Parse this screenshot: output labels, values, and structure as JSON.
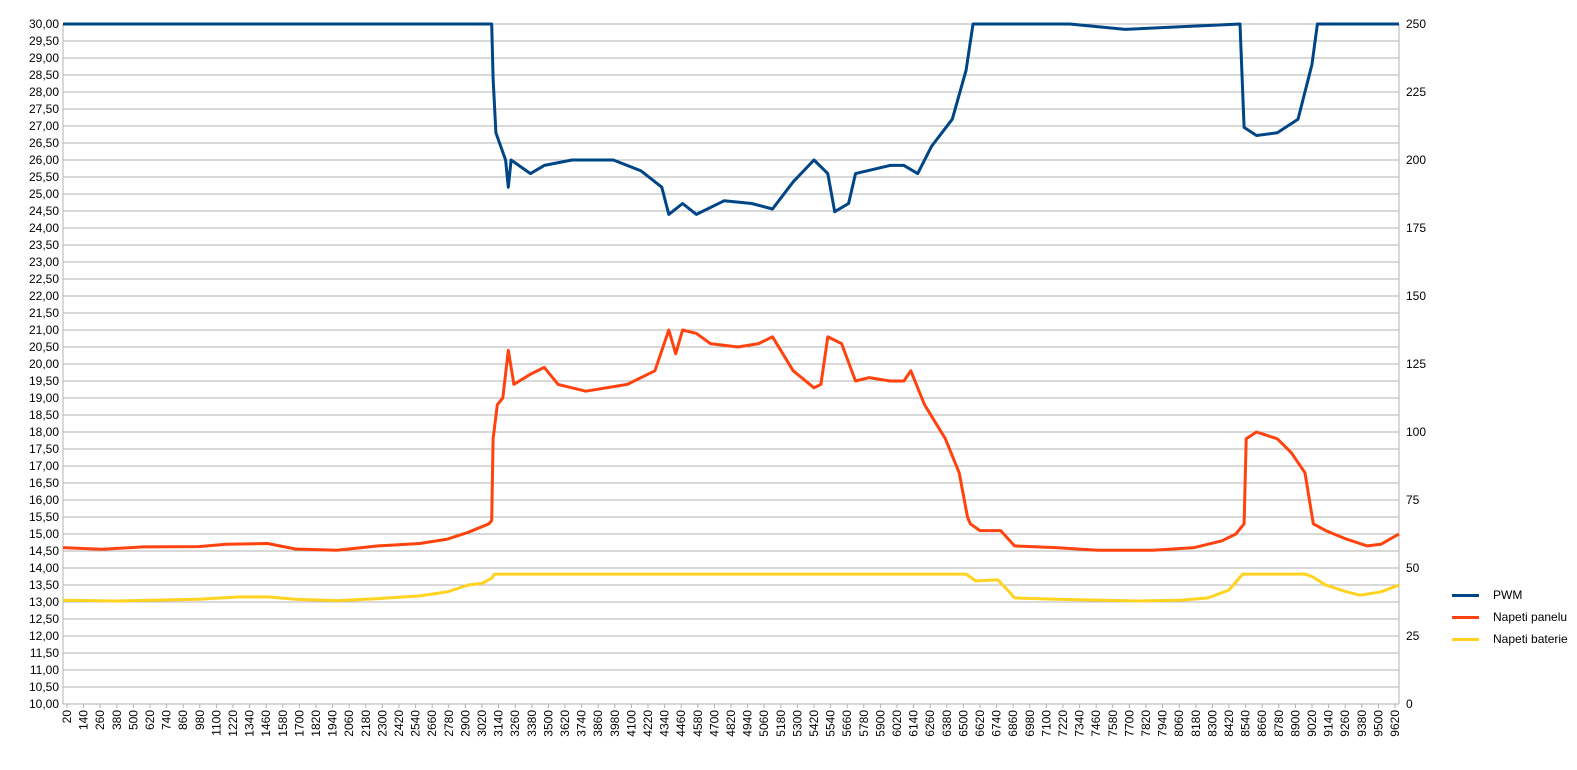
{
  "chart_data": {
    "type": "line",
    "title": "",
    "xlabel": "",
    "ylabel": "",
    "y_left": {
      "min": 10,
      "max": 30,
      "step": 0.5
    },
    "y_right": {
      "min": 0,
      "max": 250,
      "step": 25
    },
    "x_range": [
      20,
      9680
    ],
    "x_tick_labels": [
      "20",
      "140",
      "260",
      "380",
      "500",
      "620",
      "740",
      "860",
      "980",
      "1100",
      "1220",
      "1340",
      "1460",
      "1580",
      "1700",
      "1820",
      "1940",
      "2060",
      "2180",
      "2300",
      "2420",
      "2540",
      "2660",
      "2780",
      "2900",
      "3020",
      "3140",
      "3260",
      "3380",
      "3500",
      "3620",
      "3740",
      "3860",
      "3980",
      "4100",
      "4220",
      "4340",
      "4460",
      "4580",
      "4700",
      "4820",
      "4940",
      "5060",
      "5180",
      "5300",
      "5420",
      "5540",
      "5660",
      "5780",
      "5900",
      "6020",
      "6140",
      "6260",
      "6380",
      "6500",
      "6620",
      "6740",
      "6860",
      "6980",
      "7100",
      "7220",
      "7340",
      "7460",
      "7580",
      "7700",
      "7820",
      "7940",
      "8060",
      "8180",
      "8300",
      "8420",
      "8540",
      "8660",
      "8780",
      "8900",
      "9020",
      "9140",
      "9260",
      "9380",
      "9500",
      "9620"
    ],
    "grid": true,
    "legend_position": "right-bottom",
    "series": [
      {
        "name": "PWM",
        "axis": "right",
        "color": "#004586",
        "points": [
          [
            20,
            250
          ],
          [
            3120,
            250
          ],
          [
            3130,
            230
          ],
          [
            3150,
            210
          ],
          [
            3220,
            200
          ],
          [
            3240,
            190
          ],
          [
            3260,
            200
          ],
          [
            3400,
            195
          ],
          [
            3500,
            198
          ],
          [
            3700,
            200
          ],
          [
            4000,
            200
          ],
          [
            4200,
            196
          ],
          [
            4350,
            190
          ],
          [
            4400,
            180
          ],
          [
            4500,
            184
          ],
          [
            4600,
            180
          ],
          [
            4800,
            185
          ],
          [
            5000,
            184
          ],
          [
            5150,
            182
          ],
          [
            5300,
            192
          ],
          [
            5450,
            200
          ],
          [
            5550,
            195
          ],
          [
            5600,
            181
          ],
          [
            5700,
            184
          ],
          [
            5750,
            195
          ],
          [
            6000,
            198
          ],
          [
            6100,
            198
          ],
          [
            6200,
            195
          ],
          [
            6300,
            205
          ],
          [
            6450,
            215
          ],
          [
            6550,
            233
          ],
          [
            6600,
            250
          ],
          [
            7300,
            250
          ],
          [
            7700,
            248
          ],
          [
            8100,
            249
          ],
          [
            8530,
            250
          ],
          [
            8560,
            212
          ],
          [
            8650,
            209
          ],
          [
            8800,
            210
          ],
          [
            8950,
            215
          ],
          [
            9050,
            235
          ],
          [
            9090,
            250
          ],
          [
            9680,
            250
          ]
        ]
      },
      {
        "name": "Napeti panelu",
        "axis": "left",
        "values_note": "",
        "color": "#ff420e",
        "points": [
          [
            20,
            14.6
          ],
          [
            300,
            14.55
          ],
          [
            600,
            14.62
          ],
          [
            1000,
            14.63
          ],
          [
            1200,
            14.7
          ],
          [
            1500,
            14.72
          ],
          [
            1700,
            14.56
          ],
          [
            2000,
            14.52
          ],
          [
            2300,
            14.65
          ],
          [
            2600,
            14.72
          ],
          [
            2800,
            14.85
          ],
          [
            2950,
            15.05
          ],
          [
            3100,
            15.3
          ],
          [
            3120,
            15.4
          ],
          [
            3130,
            17.8
          ],
          [
            3160,
            18.8
          ],
          [
            3200,
            19.0
          ],
          [
            3240,
            20.4
          ],
          [
            3280,
            19.4
          ],
          [
            3400,
            19.7
          ],
          [
            3500,
            19.9
          ],
          [
            3600,
            19.4
          ],
          [
            3800,
            19.2
          ],
          [
            4100,
            19.4
          ],
          [
            4300,
            19.8
          ],
          [
            4400,
            21.0
          ],
          [
            4450,
            20.3
          ],
          [
            4500,
            21.0
          ],
          [
            4600,
            20.9
          ],
          [
            4700,
            20.6
          ],
          [
            4900,
            20.5
          ],
          [
            5050,
            20.6
          ],
          [
            5150,
            20.8
          ],
          [
            5300,
            19.8
          ],
          [
            5450,
            19.3
          ],
          [
            5500,
            19.4
          ],
          [
            5550,
            20.8
          ],
          [
            5650,
            20.6
          ],
          [
            5750,
            19.5
          ],
          [
            5850,
            19.6
          ],
          [
            6000,
            19.5
          ],
          [
            6100,
            19.5
          ],
          [
            6150,
            19.8
          ],
          [
            6250,
            18.8
          ],
          [
            6400,
            17.8
          ],
          [
            6500,
            16.8
          ],
          [
            6560,
            15.5
          ],
          [
            6580,
            15.3
          ],
          [
            6650,
            15.1
          ],
          [
            6800,
            15.1
          ],
          [
            6900,
            14.65
          ],
          [
            7200,
            14.6
          ],
          [
            7500,
            14.52
          ],
          [
            7900,
            14.52
          ],
          [
            8200,
            14.6
          ],
          [
            8400,
            14.8
          ],
          [
            8500,
            15.0
          ],
          [
            8560,
            15.3
          ],
          [
            8575,
            17.8
          ],
          [
            8650,
            18.0
          ],
          [
            8800,
            17.8
          ],
          [
            8900,
            17.4
          ],
          [
            9000,
            16.8
          ],
          [
            9060,
            15.3
          ],
          [
            9150,
            15.1
          ],
          [
            9300,
            14.85
          ],
          [
            9450,
            14.65
          ],
          [
            9550,
            14.7
          ],
          [
            9680,
            15.0
          ]
        ]
      },
      {
        "name": "Napeti baterie",
        "axis": "left",
        "color": "#ffd320",
        "points": [
          [
            20,
            13.05
          ],
          [
            400,
            13.03
          ],
          [
            1000,
            13.08
          ],
          [
            1300,
            13.15
          ],
          [
            1500,
            13.15
          ],
          [
            1700,
            13.08
          ],
          [
            2000,
            13.04
          ],
          [
            2300,
            13.1
          ],
          [
            2600,
            13.18
          ],
          [
            2800,
            13.3
          ],
          [
            2950,
            13.5
          ],
          [
            3050,
            13.55
          ],
          [
            3120,
            13.7
          ],
          [
            3140,
            13.82
          ],
          [
            6550,
            13.82
          ],
          [
            6620,
            13.62
          ],
          [
            6780,
            13.65
          ],
          [
            6850,
            13.35
          ],
          [
            6900,
            13.12
          ],
          [
            7200,
            13.08
          ],
          [
            7800,
            13.03
          ],
          [
            8100,
            13.05
          ],
          [
            8300,
            13.12
          ],
          [
            8450,
            13.35
          ],
          [
            8550,
            13.82
          ],
          [
            9000,
            13.82
          ],
          [
            9050,
            13.75
          ],
          [
            9150,
            13.5
          ],
          [
            9300,
            13.3
          ],
          [
            9400,
            13.2
          ],
          [
            9550,
            13.3
          ],
          [
            9680,
            13.5
          ]
        ]
      }
    ]
  },
  "legend": {
    "items": [
      {
        "label": "PWM",
        "color": "#004586"
      },
      {
        "label": "Napeti panelu",
        "color": "#ff420e"
      },
      {
        "label": "Napeti baterie",
        "color": "#ffd320"
      }
    ]
  }
}
